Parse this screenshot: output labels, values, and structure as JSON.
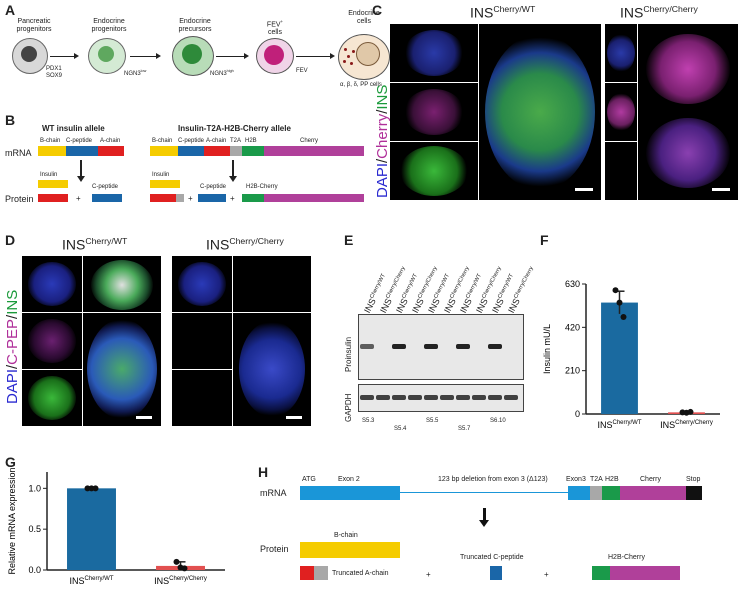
{
  "panels": {
    "A": "A",
    "B": "B",
    "C": "C",
    "D": "D",
    "E": "E",
    "F": "F",
    "G": "G",
    "H": "H"
  },
  "panelA": {
    "stages": [
      {
        "label": "Pancreatic progenitors",
        "markers": "PDX1\nSOX9"
      },
      {
        "label": "Endocrine progenitors",
        "markers": "NGN3"
      },
      {
        "label": "Endocrine precursors",
        "markers": "NGN3"
      },
      {
        "label": "FEV\ncells",
        "markers": "FEV"
      },
      {
        "label": "Endocrine cells",
        "markers": "α, β, δ, PP cells"
      }
    ],
    "ngn3_low_sup": "low",
    "ngn3_high_sup": "high",
    "fev_sup": "+"
  },
  "panelB": {
    "wt_title": "WT insulin allele",
    "cherry_title": "Insulin-T2A-H2B-Cherry allele",
    "row_mrna": "mRNA",
    "row_protein": "Protein",
    "segments": {
      "bchain": "B-chain",
      "cpeptide": "C-peptide",
      "achain": "A-chain",
      "t2a": "T2A",
      "h2b": "H2B",
      "cherry": "Cherry"
    },
    "insulin": "Insulin",
    "cpep": "C-peptide",
    "h2bcherry": "H2B-Cherry",
    "plus": "+"
  },
  "panelC": {
    "title_left": "INS",
    "title_left_sup": "Cherry/WT",
    "title_right": "INS",
    "title_right_sup": "Cherry/Cherry",
    "side_label": "DAPI/Cherry/INS"
  },
  "panelD": {
    "title_left": "INS",
    "title_left_sup": "Cherry/WT",
    "title_right": "INS",
    "title_right_sup": "Cherry/Cherry",
    "side_label": "DAPI/C-PEP/INS"
  },
  "panelE": {
    "lane_labels": [
      "INS",
      "INS",
      "INS",
      "INS",
      "INS",
      "INS",
      "INS",
      "INS",
      "INS",
      "INS"
    ],
    "lane_sups": [
      "Cherry/WT",
      "Cherry/Cherry",
      "Cherry/WT",
      "Cherry/Cherry",
      "Cherry/WT",
      "Cherry/Cherry",
      "Cherry/WT",
      "Cherry/Cherry",
      "Cherry/WT",
      "Cherry/Cherry"
    ],
    "blot1": "Proinsulin",
    "blot2": "GAPDH",
    "stages": [
      "S5.3",
      "S5.4",
      "S5.5",
      "S5.7",
      "S6.10"
    ]
  },
  "colors": {
    "blue": "#1a66a8",
    "red": "#e02020",
    "yellow": "#f5cc00",
    "grey": "#a8a8a8",
    "green": "#1a9a4a",
    "magenta": "#b0409a",
    "bar_blue": "#1a6aa0",
    "bar_red": "#e25050"
  },
  "chart_data": [
    {
      "type": "bar",
      "panel": "F",
      "categories": [
        "INS",
        "INS"
      ],
      "category_sups": [
        "Cherry/WT",
        "Cherry/Cherry"
      ],
      "values": [
        540,
        8
      ],
      "points": [
        [
          600,
          540,
          470
        ],
        [
          8,
          6,
          10
        ]
      ],
      "error": [
        55,
        3
      ],
      "ylabel": "Insulin mU/L",
      "ylim": [
        0,
        630
      ],
      "yticks": [
        0,
        210,
        420,
        630
      ]
    },
    {
      "type": "bar",
      "panel": "G",
      "categories": [
        "INS",
        "INS"
      ],
      "category_sups": [
        "Cherry/WT",
        "Cherry/Cherry"
      ],
      "values": [
        1.0,
        0.05
      ],
      "points": [
        [
          1.0,
          1.0,
          1.0
        ],
        [
          0.1,
          0.03,
          0.02
        ]
      ],
      "error": [
        0.005,
        0.05
      ],
      "ylabel": "Relative mRNA expression",
      "ylim": [
        0,
        1.2
      ],
      "yticks": [
        "0.0",
        "0.5",
        "1.0"
      ]
    }
  ],
  "panelH": {
    "row_mrna": "mRNA",
    "row_protein": "Protein",
    "atg": "ATG",
    "exon2": "Exon 2",
    "deletion": "123 bp deletion from exon 3 (Δ123)",
    "exon3": "Exon3",
    "t2a": "T2A",
    "h2b": "H2B",
    "cherry": "Cherry",
    "stop": "Stop",
    "bchain": "B-chain",
    "trunc_a": "Truncated A-chain",
    "trunc_c": "Truncated C-peptide",
    "h2bcherry": "H2B-Cherry",
    "plus": "+"
  }
}
